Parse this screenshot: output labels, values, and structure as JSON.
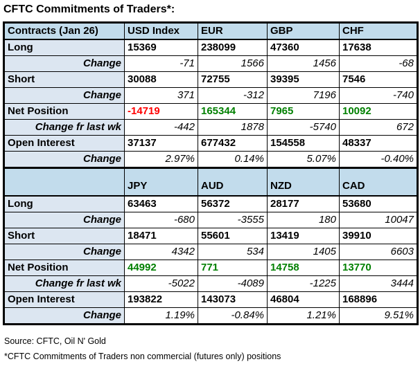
{
  "title": "CFTC Commitments of Traders*:",
  "colors": {
    "positive": "#008000",
    "negative": "#ff0000",
    "header_bg": "#c2dcec",
    "label_bg": "#dce6f1"
  },
  "chart_data": {
    "type": "table",
    "title": "CFTC Commitments of Traders*:",
    "sections": [
      {
        "header_label": "Contracts (Jan 26)",
        "columns": [
          "USD Index",
          "EUR",
          "GBP",
          "CHF"
        ],
        "rows": [
          {
            "label": "Long",
            "type": "main",
            "values": [
              "15369",
              "238099",
              "47360",
              "17638"
            ]
          },
          {
            "label": "Change",
            "type": "change",
            "values": [
              "-71",
              "1566",
              "1456",
              "-68"
            ]
          },
          {
            "label": "Short",
            "type": "main",
            "values": [
              "30088",
              "72755",
              "39395",
              "7546"
            ]
          },
          {
            "label": "Change",
            "type": "change",
            "values": [
              "371",
              "-312",
              "7196",
              "-740"
            ]
          },
          {
            "label": "Net Position",
            "type": "main",
            "values": [
              "-14719",
              "165344",
              "7965",
              "10092"
            ],
            "value_colors": [
              "negative",
              "positive",
              "positive",
              "positive"
            ]
          },
          {
            "label": "Change fr last wk",
            "type": "change",
            "values": [
              "-442",
              "1878",
              "-5740",
              "672"
            ]
          },
          {
            "label": "Open Interest",
            "type": "main",
            "values": [
              "37137",
              "677432",
              "154558",
              "48337"
            ]
          },
          {
            "label": "Change",
            "type": "change",
            "values": [
              "2.97%",
              "0.14%",
              "5.07%",
              "-0.40%"
            ]
          }
        ]
      },
      {
        "header_label": "",
        "columns": [
          "JPY",
          "AUD",
          "NZD",
          "CAD"
        ],
        "rows": [
          {
            "label": "Long",
            "type": "main",
            "values": [
              "63463",
              "56372",
              "28177",
              "53680"
            ]
          },
          {
            "label": "Change",
            "type": "change",
            "values": [
              "-680",
              "-3555",
              "180",
              "10047"
            ]
          },
          {
            "label": "Short",
            "type": "main",
            "values": [
              "18471",
              "55601",
              "13419",
              "39910"
            ]
          },
          {
            "label": "Change",
            "type": "change",
            "values": [
              "4342",
              "534",
              "1405",
              "6603"
            ]
          },
          {
            "label": "Net Position",
            "type": "main",
            "values": [
              "44992",
              "771",
              "14758",
              "13770"
            ],
            "value_colors": [
              "positive",
              "positive",
              "positive",
              "positive"
            ]
          },
          {
            "label": "Change fr last wk",
            "type": "change",
            "values": [
              "-5022",
              "-4089",
              "-1225",
              "3444"
            ]
          },
          {
            "label": "Open Interest",
            "type": "main",
            "values": [
              "193822",
              "143073",
              "46804",
              "168896"
            ]
          },
          {
            "label": "Change",
            "type": "change",
            "values": [
              "1.19%",
              "-0.84%",
              "1.21%",
              "9.51%"
            ]
          }
        ]
      }
    ]
  },
  "footer": {
    "source": "Source: CFTC, Oil N' Gold",
    "note": "*CFTC Commitments of Traders non commercial (futures only) positions"
  }
}
